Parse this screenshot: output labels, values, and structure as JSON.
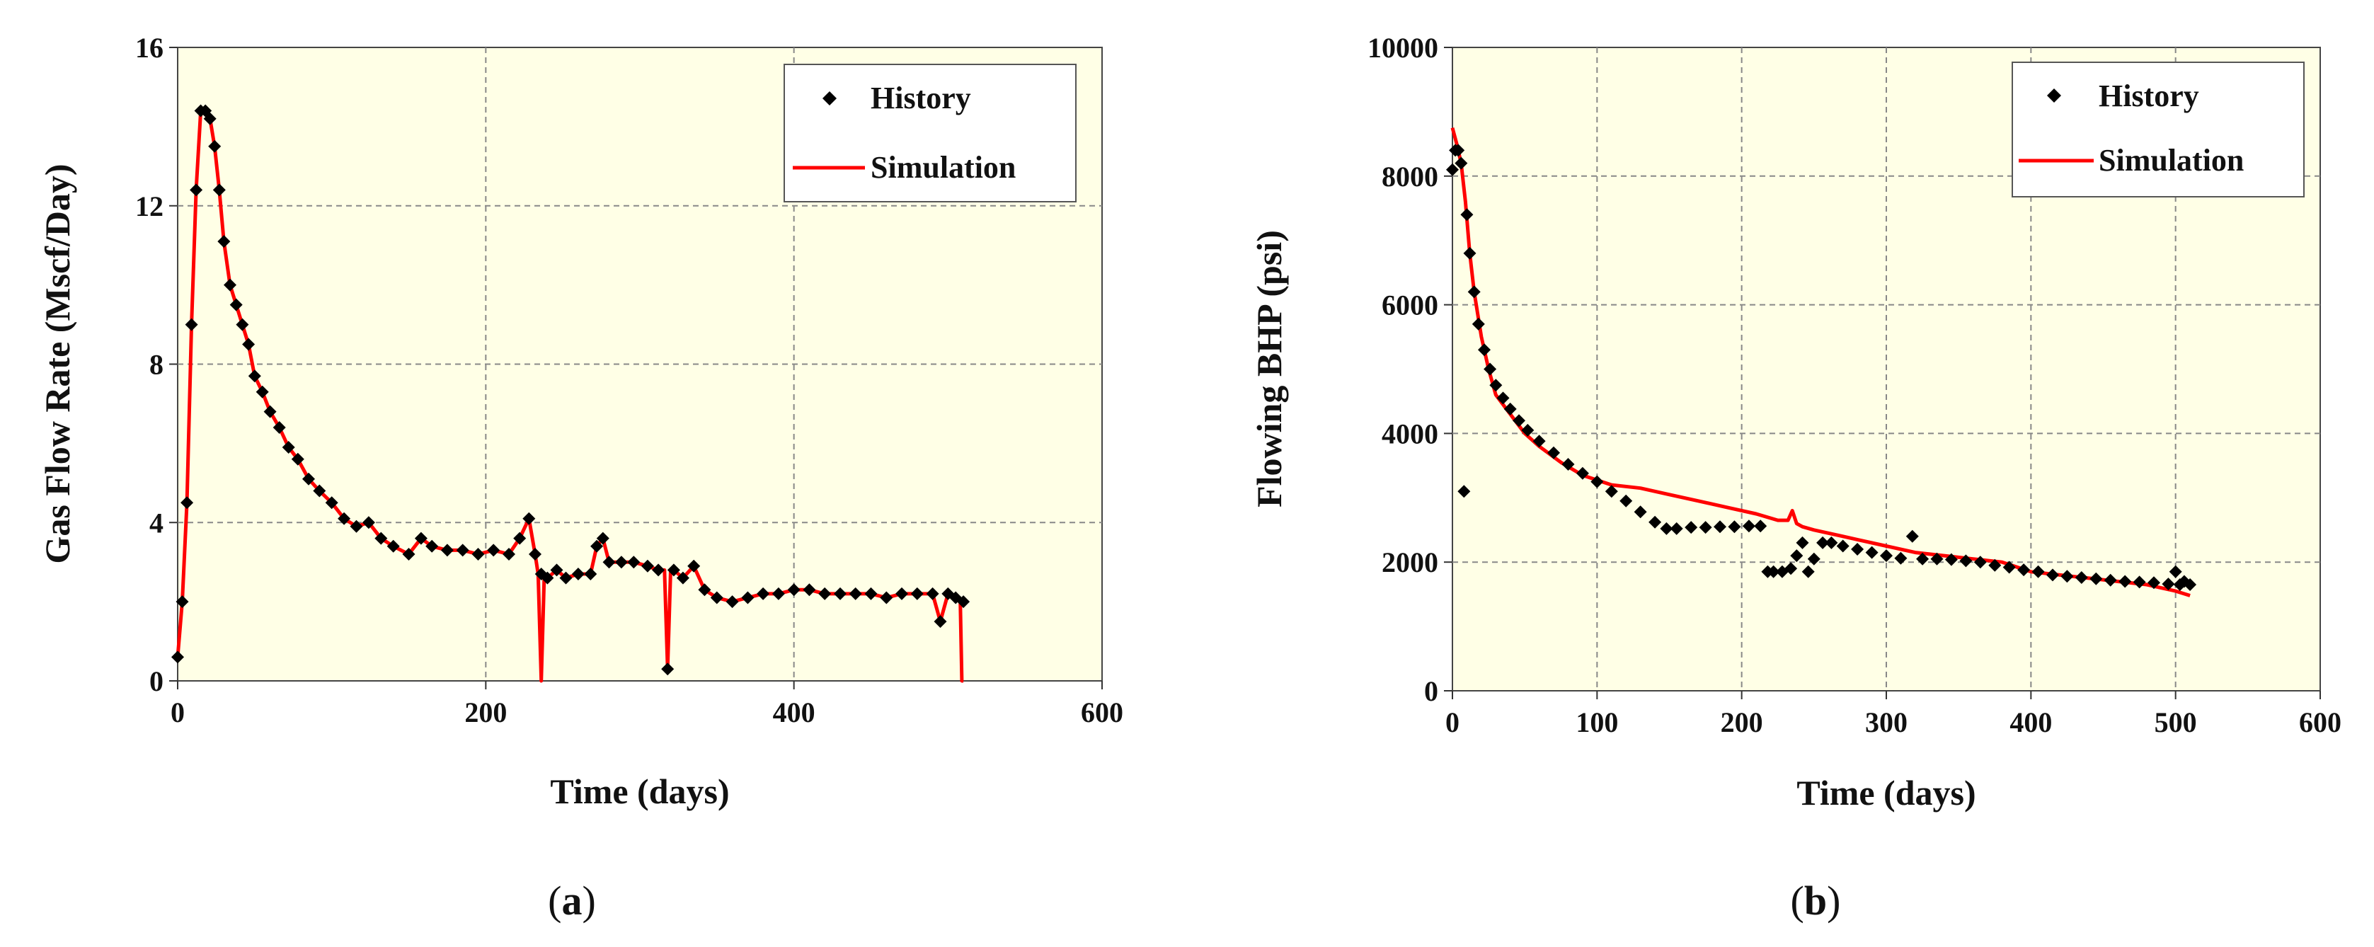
{
  "chart_data": [
    {
      "type": "line",
      "panel": "a",
      "xlabel": "Time  (days)",
      "ylabel": "Gas  Flow  Rate  (Mscf/Day)",
      "xlim": [
        0,
        600
      ],
      "ylim": [
        0,
        16
      ],
      "xticks": [
        0,
        200,
        400,
        600
      ],
      "yticks": [
        0,
        4,
        8,
        12,
        16
      ],
      "grid": true,
      "legend_position": "top-right",
      "plot_background": "#ffffe6",
      "series": [
        {
          "name": "History",
          "style": "markers",
          "color": "#000000",
          "x": [
            0,
            3,
            6,
            9,
            12,
            15,
            18,
            21,
            24,
            27,
            30,
            34,
            38,
            42,
            46,
            50,
            55,
            60,
            66,
            72,
            78,
            85,
            92,
            100,
            108,
            116,
            124,
            132,
            140,
            150,
            158,
            165,
            175,
            185,
            195,
            205,
            215,
            222,
            228,
            232,
            236,
            240,
            246,
            252,
            260,
            268,
            272,
            276,
            280,
            288,
            296,
            305,
            312,
            318,
            322,
            328,
            335,
            342,
            350,
            360,
            370,
            380,
            390,
            400,
            410,
            420,
            430,
            440,
            450,
            460,
            470,
            480,
            490,
            495,
            500,
            505,
            510
          ],
          "y": [
            0.6,
            2.0,
            4.5,
            9.0,
            12.4,
            14.4,
            14.4,
            14.2,
            13.5,
            12.4,
            11.1,
            10.0,
            9.5,
            9.0,
            8.5,
            7.7,
            7.3,
            6.8,
            6.4,
            5.9,
            5.6,
            5.1,
            4.8,
            4.5,
            4.1,
            3.9,
            4.0,
            3.6,
            3.4,
            3.2,
            3.6,
            3.4,
            3.3,
            3.3,
            3.2,
            3.3,
            3.2,
            3.6,
            4.1,
            3.2,
            2.7,
            2.6,
            2.8,
            2.6,
            2.7,
            2.7,
            3.4,
            3.6,
            3.0,
            3.0,
            3.0,
            2.9,
            2.8,
            0.3,
            2.8,
            2.6,
            2.9,
            2.3,
            2.1,
            2.0,
            2.1,
            2.2,
            2.2,
            2.3,
            2.3,
            2.2,
            2.2,
            2.2,
            2.2,
            2.1,
            2.2,
            2.2,
            2.2,
            1.5,
            2.2,
            2.1,
            2.0
          ]
        },
        {
          "name": "Simulation",
          "style": "line",
          "color": "#ff0000",
          "x": [
            0,
            3,
            6,
            9,
            12,
            15,
            18,
            21,
            24,
            27,
            30,
            34,
            38,
            42,
            46,
            50,
            55,
            60,
            66,
            72,
            78,
            85,
            92,
            100,
            108,
            116,
            124,
            132,
            140,
            150,
            158,
            165,
            175,
            185,
            195,
            205,
            215,
            222,
            228,
            232,
            234,
            236,
            238,
            240,
            246,
            252,
            260,
            268,
            272,
            276,
            280,
            288,
            296,
            305,
            312,
            316,
            318,
            320,
            322,
            328,
            335,
            342,
            350,
            360,
            370,
            380,
            390,
            400,
            410,
            420,
            430,
            440,
            450,
            460,
            470,
            480,
            490,
            495,
            500,
            505,
            508,
            509,
            510
          ],
          "y": [
            0.6,
            2.0,
            4.5,
            9.0,
            12.4,
            14.4,
            14.4,
            14.2,
            13.5,
            12.4,
            11.1,
            10.0,
            9.5,
            9.0,
            8.5,
            7.7,
            7.3,
            6.8,
            6.4,
            5.9,
            5.6,
            5.1,
            4.8,
            4.5,
            4.1,
            3.9,
            4.0,
            3.6,
            3.4,
            3.2,
            3.6,
            3.4,
            3.3,
            3.3,
            3.2,
            3.3,
            3.2,
            3.6,
            4.1,
            3.2,
            2.7,
            0.0,
            2.7,
            2.6,
            2.8,
            2.6,
            2.7,
            2.7,
            3.4,
            3.6,
            3.0,
            3.0,
            3.0,
            2.9,
            2.8,
            2.8,
            0.3,
            2.8,
            2.8,
            2.6,
            2.9,
            2.3,
            2.1,
            2.0,
            2.1,
            2.2,
            2.2,
            2.3,
            2.3,
            2.2,
            2.2,
            2.2,
            2.2,
            2.1,
            2.2,
            2.2,
            2.2,
            1.5,
            2.2,
            2.1,
            2.0,
            0.0,
            0.0
          ]
        }
      ]
    },
    {
      "type": "line",
      "panel": "b",
      "xlabel": "Time  (days)",
      "ylabel": "Flowing  BHP  (psi)",
      "xlim": [
        0,
        600
      ],
      "ylim": [
        0,
        10000
      ],
      "xticks": [
        0,
        100,
        200,
        300,
        400,
        500,
        600
      ],
      "yticks": [
        0,
        2000,
        4000,
        6000,
        8000,
        10000
      ],
      "grid": true,
      "legend_position": "top-right",
      "plot_background": "#ffffe6",
      "series": [
        {
          "name": "History",
          "style": "markers",
          "color": "#000000",
          "x": [
            0,
            2,
            4,
            6,
            8,
            10,
            12,
            15,
            18,
            22,
            26,
            30,
            35,
            40,
            46,
            52,
            60,
            70,
            80,
            90,
            100,
            110,
            120,
            130,
            140,
            148,
            155,
            165,
            175,
            185,
            195,
            205,
            213,
            218,
            222,
            228,
            234,
            238,
            242,
            246,
            250,
            256,
            262,
            270,
            280,
            290,
            300,
            310,
            318,
            325,
            335,
            345,
            355,
            365,
            375,
            385,
            395,
            405,
            415,
            425,
            435,
            445,
            455,
            465,
            475,
            485,
            495,
            500,
            503,
            506,
            510
          ],
          "y": [
            8100,
            8400,
            8400,
            8200,
            3100,
            7400,
            6800,
            6200,
            5700,
            5300,
            5000,
            4750,
            4550,
            4380,
            4200,
            4050,
            3880,
            3700,
            3520,
            3380,
            3250,
            3100,
            2950,
            2780,
            2620,
            2520,
            2520,
            2540,
            2540,
            2550,
            2550,
            2560,
            2560,
            1850,
            1850,
            1850,
            1900,
            2100,
            2300,
            1850,
            2050,
            2300,
            2300,
            2250,
            2200,
            2150,
            2100,
            2060,
            2400,
            2050,
            2050,
            2040,
            2020,
            2000,
            1950,
            1920,
            1880,
            1850,
            1800,
            1780,
            1760,
            1740,
            1720,
            1700,
            1690,
            1680,
            1660,
            1850,
            1650,
            1700,
            1650
          ]
        },
        {
          "name": "Simulation",
          "style": "line",
          "color": "#ff0000",
          "x": [
            0,
            3,
            6,
            9,
            12,
            15,
            20,
            25,
            30,
            40,
            50,
            60,
            75,
            90,
            110,
            130,
            150,
            170,
            190,
            210,
            225,
            232,
            235,
            238,
            242,
            250,
            260,
            270,
            280,
            300,
            320,
            340,
            360,
            380,
            400,
            420,
            440,
            460,
            480,
            500,
            510
          ],
          "y": [
            8750,
            8500,
            8200,
            7600,
            6800,
            6200,
            5500,
            5000,
            4600,
            4300,
            4000,
            3800,
            3550,
            3350,
            3200,
            3150,
            3050,
            2950,
            2850,
            2750,
            2650,
            2650,
            2800,
            2600,
            2550,
            2500,
            2450,
            2400,
            2350,
            2250,
            2150,
            2100,
            2050,
            2000,
            1850,
            1800,
            1750,
            1700,
            1650,
            1550,
            1480
          ]
        }
      ]
    }
  ],
  "captions": {
    "a_open": "(",
    "a_letter": "a",
    "a_close": ")",
    "b_open": "(",
    "b_letter": "b",
    "b_close": ")"
  }
}
